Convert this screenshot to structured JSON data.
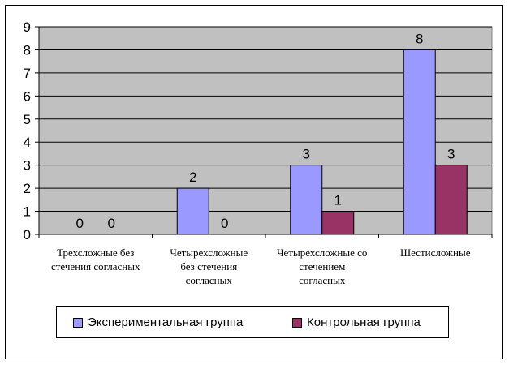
{
  "chart_data": {
    "type": "bar",
    "categories": [
      [
        "Трехсложные без",
        "стечения согласных"
      ],
      [
        "Четырехсложные",
        "без стечения",
        "согласных"
      ],
      [
        "Четырехсложные со",
        "стечением",
        "согласных"
      ],
      [
        "Шестисложные"
      ]
    ],
    "series": [
      {
        "name": "Экспериментальная группа",
        "values": [
          0,
          2,
          3,
          8
        ],
        "color": "#9999ff"
      },
      {
        "name": "Контрольная группа",
        "values": [
          0,
          0,
          1,
          3
        ],
        "color": "#993366"
      }
    ],
    "yticks": [
      "0",
      "1",
      "2",
      "3",
      "4",
      "5",
      "6",
      "7",
      "8",
      "9"
    ],
    "ylim": [
      0,
      9
    ],
    "grid": true,
    "legend_position": "bottom",
    "plot_background": "#c0c0c0"
  }
}
